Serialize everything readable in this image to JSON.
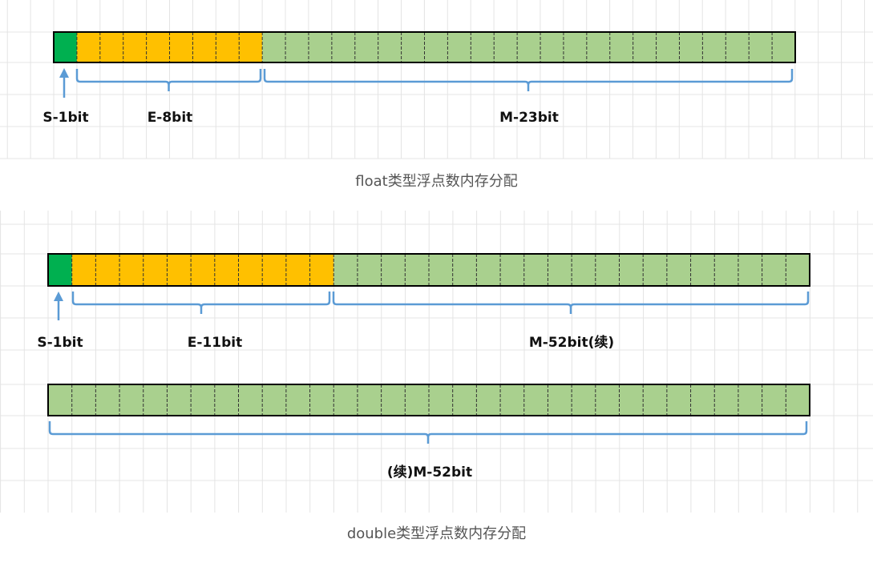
{
  "colors": {
    "sign": "#00b050",
    "exponent": "#ffc000",
    "mantissa": "#a9d08e",
    "bracket": "#5b9bd5",
    "grid": "#e4e4e4"
  },
  "float_diagram": {
    "caption": "float类型浮点数内存分配",
    "bits": {
      "sign": 1,
      "exponent": 8,
      "mantissa": 23
    },
    "labels": {
      "sign": "S-1bit",
      "exponent": "E-8bit",
      "mantissa": "M-23bit"
    }
  },
  "double_diagram": {
    "caption": "double类型浮点数内存分配",
    "row1_bits": {
      "sign": 1,
      "exponent": 11,
      "mantissa": 20
    },
    "row2_bits": {
      "mantissa": 32
    },
    "labels": {
      "sign": "S-1bit",
      "exponent": "E-11bit",
      "mantissa_part1": "M-52bit(续)",
      "mantissa_part2": "(续)M-52bit"
    }
  }
}
